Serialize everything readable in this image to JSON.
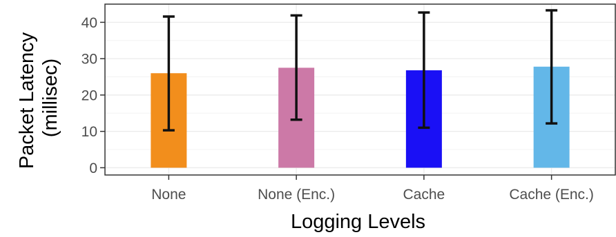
{
  "chart_data": {
    "type": "bar",
    "categories": [
      "None",
      "None (Enc.)",
      "Cache",
      "Cache (Enc.)"
    ],
    "values": [
      26,
      27.5,
      26.8,
      27.8
    ],
    "error_low": [
      10.3,
      13.2,
      11.0,
      12.2
    ],
    "error_high": [
      41.6,
      41.9,
      42.7,
      43.3
    ],
    "colors": [
      "#f28e1c",
      "#cc79a7",
      "#1a10f5",
      "#63b7e8"
    ],
    "title": "",
    "xlabel": "Logging Levels",
    "ylabel": [
      "Packet Latency",
      "(millisec)"
    ],
    "ylim": [
      -2,
      45
    ],
    "yticks": [
      0,
      10,
      20,
      30,
      40
    ],
    "grid": true,
    "legend": "none"
  }
}
